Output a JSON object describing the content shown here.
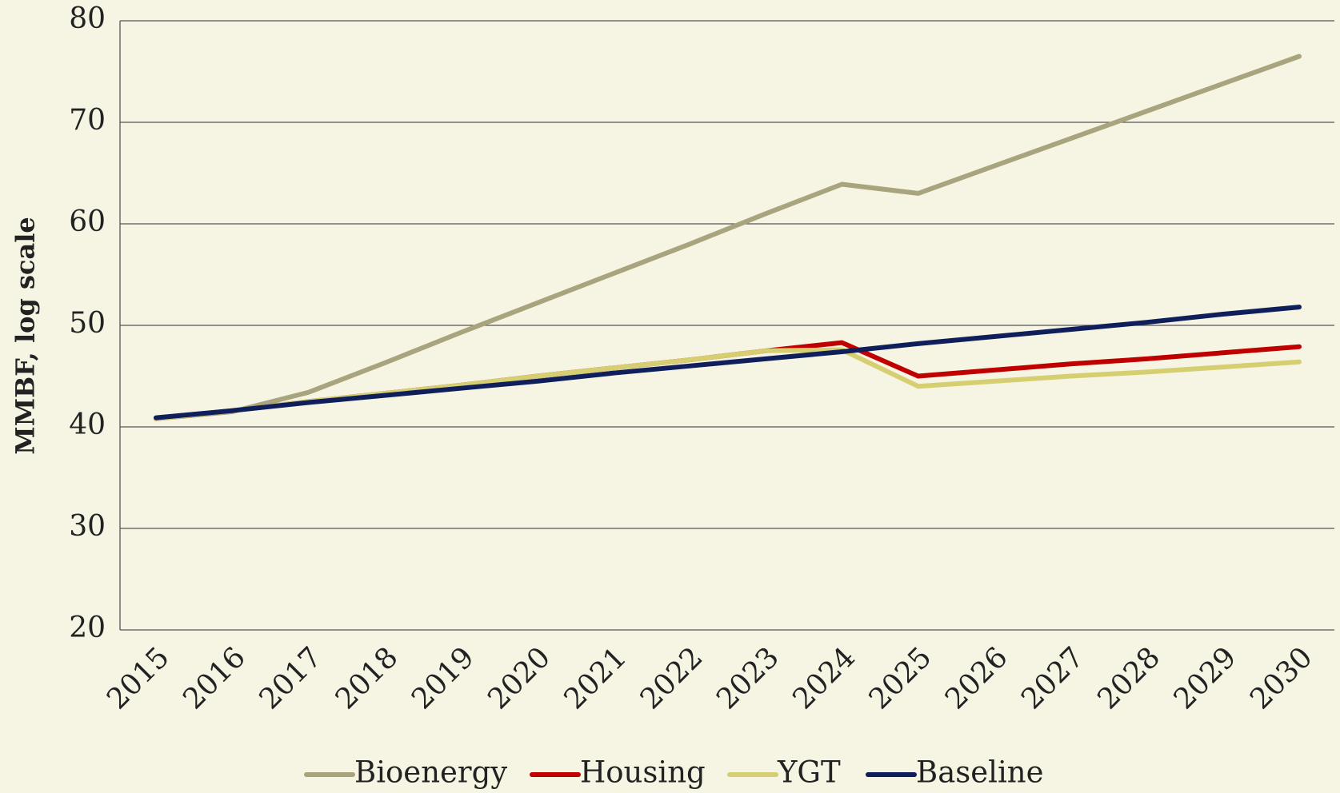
{
  "chart_data": {
    "type": "line",
    "y_label": "MMBF, log scale",
    "categories": [
      "2015",
      "2016",
      "2017",
      "2018",
      "2019",
      "2020",
      "2021",
      "2022",
      "2023",
      "2024",
      "2025",
      "2026",
      "2027",
      "2028",
      "2029",
      "2030"
    ],
    "series": [
      {
        "name": "Bioenergy",
        "color": "#a8a57e",
        "values": [
          40.8,
          41.5,
          43.4,
          46.3,
          49.3,
          52.2,
          55.1,
          58.0,
          61.0,
          63.9,
          63.0,
          65.7,
          68.4,
          71.1,
          73.8,
          76.5
        ]
      },
      {
        "name": "Housing",
        "color": "#c00000",
        "values": [
          40.8,
          41.6,
          42.5,
          43.3,
          44.1,
          45.0,
          45.8,
          46.6,
          47.5,
          48.3,
          45.0,
          45.6,
          46.2,
          46.7,
          47.3,
          47.9
        ]
      },
      {
        "name": "YGT",
        "color": "#d6cf72",
        "values": [
          40.8,
          41.6,
          42.5,
          43.3,
          44.1,
          45.0,
          45.8,
          46.6,
          47.5,
          47.6,
          44.0,
          44.5,
          45.0,
          45.4,
          45.9,
          46.4
        ]
      },
      {
        "name": "Baseline",
        "color": "#0f1f5c",
        "values": [
          40.9,
          41.6,
          42.4,
          43.1,
          43.8,
          44.5,
          45.3,
          46.0,
          46.7,
          47.4,
          48.2,
          48.9,
          49.6,
          50.3,
          51.1,
          51.8
        ]
      }
    ],
    "ylim": [
      20,
      80
    ],
    "yticks": [
      20,
      30,
      40,
      50,
      60,
      70,
      80
    ],
    "grid": true,
    "legend": "bottom"
  }
}
